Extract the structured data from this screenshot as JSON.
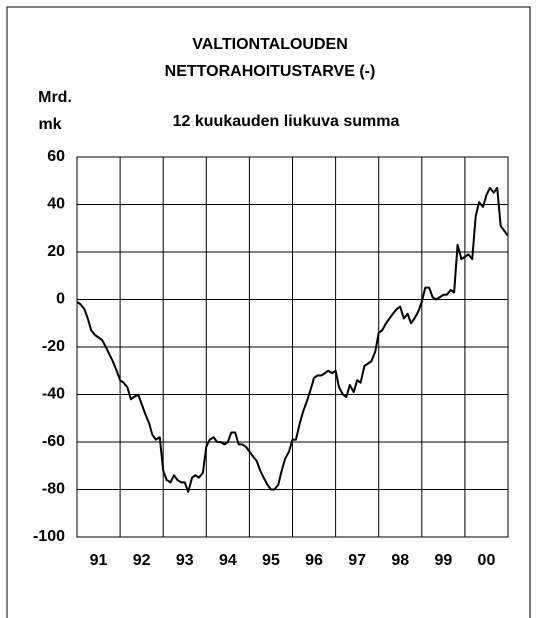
{
  "chart_data": {
    "type": "line",
    "title": [
      "VALTIONTALOUDEN",
      "NETTORAHOITUSTARVE (-)"
    ],
    "subtitle": "12 kuukauden liukuva summa",
    "y_label": [
      "Mrd.",
      "mk"
    ],
    "x": [
      1991.0,
      1991.08,
      1991.17,
      1991.25,
      1991.33,
      1991.42,
      1991.5,
      1991.58,
      1991.67,
      1991.75,
      1991.83,
      1991.92,
      1992.0,
      1992.08,
      1992.17,
      1992.25,
      1992.33,
      1992.42,
      1992.5,
      1992.58,
      1992.67,
      1992.75,
      1992.83,
      1992.92,
      1993.0,
      1993.08,
      1993.17,
      1993.25,
      1993.33,
      1993.42,
      1993.5,
      1993.58,
      1993.67,
      1993.75,
      1993.83,
      1993.92,
      1994.0,
      1994.08,
      1994.17,
      1994.25,
      1994.33,
      1994.42,
      1994.5,
      1994.58,
      1994.67,
      1994.75,
      1994.83,
      1994.92,
      1995.0,
      1995.08,
      1995.17,
      1995.25,
      1995.33,
      1995.42,
      1995.5,
      1995.58,
      1995.67,
      1995.75,
      1995.83,
      1995.92,
      1996.0,
      1996.08,
      1996.17,
      1996.25,
      1996.33,
      1996.42,
      1996.5,
      1996.58,
      1996.67,
      1996.75,
      1996.83,
      1996.92,
      1997.0,
      1997.08,
      1997.17,
      1997.25,
      1997.33,
      1997.42,
      1997.5,
      1997.58,
      1997.67,
      1997.75,
      1997.83,
      1997.92,
      1998.0,
      1998.08,
      1998.17,
      1998.25,
      1998.33,
      1998.42,
      1998.5,
      1998.58,
      1998.67,
      1998.75,
      1998.83,
      1998.92,
      1999.0,
      1999.08,
      1999.17,
      1999.25,
      1999.33,
      1999.42,
      1999.5,
      1999.58,
      1999.67,
      1999.75,
      1999.83,
      1999.92,
      2000.0,
      2000.08,
      2000.17,
      2000.25,
      2000.33,
      2000.42,
      2000.5,
      2000.58,
      2000.67,
      2000.75,
      2000.83,
      2000.99
    ],
    "series": [
      {
        "color": "#000000",
        "values": [
          -1,
          -2,
          -4,
          -8,
          -13,
          -15,
          -16,
          -17,
          -20,
          -23,
          -26,
          -30,
          -34,
          -35,
          -37,
          -42,
          -41,
          -40,
          -44,
          -48,
          -52,
          -57,
          -59,
          -58,
          -72,
          -76,
          -77,
          -74,
          -76,
          -77,
          -77,
          -81,
          -75,
          -74,
          -75,
          -73,
          -62,
          -59,
          -58,
          -60,
          -60,
          -61,
          -60,
          -56,
          -56,
          -61,
          -61,
          -62,
          -64,
          -66,
          -68,
          -72,
          -75,
          -78,
          -80,
          -80,
          -78,
          -72,
          -67,
          -64,
          -59,
          -59,
          -52,
          -47,
          -43,
          -38,
          -33,
          -32,
          -32,
          -31,
          -30,
          -31,
          -30,
          -37,
          -40,
          -41,
          -36,
          -39,
          -34,
          -35,
          -28,
          -27,
          -26,
          -22,
          -14,
          -13,
          -10,
          -8,
          -6,
          -4,
          -3,
          -8,
          -6,
          -10,
          -8,
          -5,
          -1,
          5,
          5,
          1,
          0,
          1,
          2,
          2,
          4,
          3,
          23,
          17,
          18,
          19,
          17,
          35,
          41,
          39,
          44,
          47,
          45,
          47,
          31,
          27
        ]
      }
    ],
    "xlim": [
      1991,
      2001
    ],
    "xticks": [
      {
        "value": 1991.5,
        "label": "91"
      },
      {
        "value": 1992.5,
        "label": "92"
      },
      {
        "value": 1993.5,
        "label": "93"
      },
      {
        "value": 1994.5,
        "label": "94"
      },
      {
        "value": 1995.5,
        "label": "95"
      },
      {
        "value": 1996.5,
        "label": "96"
      },
      {
        "value": 1997.5,
        "label": "97"
      },
      {
        "value": 1998.5,
        "label": "98"
      },
      {
        "value": 1999.5,
        "label": "99"
      },
      {
        "value": 2000.5,
        "label": "00"
      }
    ],
    "ylim": [
      -100,
      60
    ],
    "yticks": [
      60,
      40,
      20,
      0,
      -20,
      -40,
      -60,
      -80,
      -100
    ],
    "grid": true
  }
}
